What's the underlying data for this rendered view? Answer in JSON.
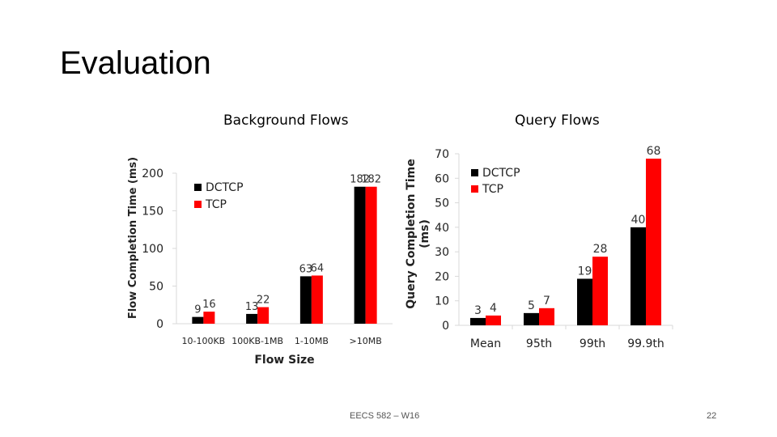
{
  "slide": {
    "title": "Evaluation",
    "footer": "EECS 582 – W16",
    "page_number": "22"
  },
  "colors": {
    "dctcp": "#000000",
    "tcp": "#ff0000",
    "grid": "#d9d9d9"
  },
  "chart_data": [
    {
      "type": "bar",
      "title": "Background Flows",
      "xlabel": "Flow Size",
      "ylabel": "Flow Completion Time (ms)",
      "categories": [
        "10-100KB",
        "100KB-1MB",
        "1-10MB",
        ">10MB"
      ],
      "series": [
        {
          "name": "DCTCP",
          "color": "#000000",
          "values": [
            9,
            13,
            63,
            182
          ]
        },
        {
          "name": "TCP",
          "color": "#ff0000",
          "values": [
            16,
            22,
            64,
            182
          ]
        }
      ],
      "ylim": [
        0,
        200
      ],
      "yticks": [
        0,
        50,
        100,
        150,
        200
      ],
      "legend": "top-left",
      "grid": false
    },
    {
      "type": "bar",
      "title": "Query Flows",
      "xlabel": "",
      "ylabel": "Query Completion Time (ms)",
      "categories": [
        "Mean",
        "95th",
        "99th",
        "99.9th"
      ],
      "series": [
        {
          "name": "DCTCP",
          "color": "#000000",
          "values": [
            3,
            5,
            19,
            40
          ]
        },
        {
          "name": "TCP",
          "color": "#ff0000",
          "values": [
            4,
            7,
            28,
            68
          ]
        }
      ],
      "ylim": [
        0,
        70
      ],
      "yticks": [
        0,
        10,
        20,
        30,
        40,
        50,
        60,
        70
      ],
      "legend": "top-left",
      "grid": false
    }
  ]
}
